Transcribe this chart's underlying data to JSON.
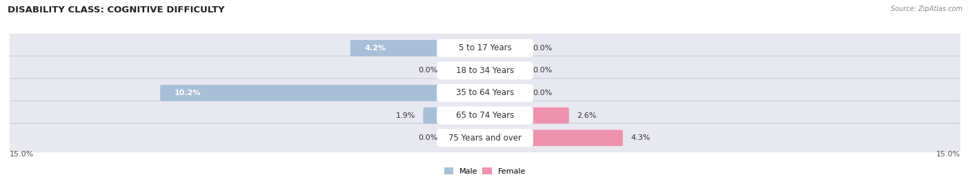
{
  "title": "DISABILITY CLASS: COGNITIVE DIFFICULTY",
  "source_text": "Source: ZipAtlas.com",
  "categories": [
    "5 to 17 Years",
    "18 to 34 Years",
    "35 to 64 Years",
    "65 to 74 Years",
    "75 Years and over"
  ],
  "male_values": [
    4.2,
    0.0,
    10.2,
    1.9,
    0.0
  ],
  "female_values": [
    0.0,
    0.0,
    0.0,
    2.6,
    4.3
  ],
  "x_max": 15.0,
  "male_color": "#a8bfd8",
  "female_color": "#ee92ae",
  "male_label": "Male",
  "female_label": "Female",
  "row_bg_color": "#e8e8f0",
  "row_border_color": "#ccccdd",
  "title_fontsize": 9.5,
  "source_fontsize": 7,
  "label_fontsize": 8,
  "category_fontsize": 8.5,
  "value_fontsize": 8,
  "value_color_dark": "#333333",
  "value_color_white": "#ffffff",
  "zero_bar_width": 1.5,
  "category_pill_color": "#ffffff",
  "axis_label_fontsize": 8
}
